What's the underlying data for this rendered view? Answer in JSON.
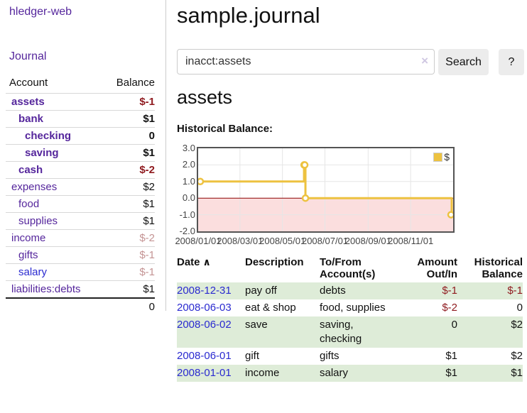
{
  "colors": {
    "link_purple": "#55269c",
    "link_blue": "#2a2ad0",
    "negative_red": "#8f1a1f",
    "negative_muted": "#c49494",
    "row_stripe_green": "#deecd8",
    "button_grey": "#ececec",
    "series_yellow": "#edc240"
  },
  "sidebar": {
    "app_title": "hledger-web",
    "nav_journal": "Journal",
    "table": {
      "col_account": "Account",
      "col_balance": "Balance",
      "total": "0"
    },
    "accounts": [
      {
        "label": "assets",
        "indent": 1,
        "bold": true,
        "color": "purple",
        "balance": "$-1",
        "balance_style": "neg"
      },
      {
        "label": "bank",
        "indent": 2,
        "bold": true,
        "color": "purple",
        "balance": "$1",
        "balance_style": "pos"
      },
      {
        "label": "checking",
        "indent": 3,
        "bold": true,
        "color": "purple",
        "balance": "0",
        "balance_style": "pos"
      },
      {
        "label": "saving",
        "indent": 3,
        "bold": true,
        "color": "purple",
        "balance": "$1",
        "balance_style": "pos"
      },
      {
        "label": "cash",
        "indent": 2,
        "bold": true,
        "color": "purple",
        "balance": "$-2",
        "balance_style": "neg"
      },
      {
        "label": "expenses",
        "indent": 1,
        "bold": false,
        "color": "purple",
        "balance": "$2",
        "balance_style": "pos"
      },
      {
        "label": "food",
        "indent": 2,
        "bold": false,
        "color": "purple",
        "balance": "$1",
        "balance_style": "pos"
      },
      {
        "label": "supplies",
        "indent": 2,
        "bold": false,
        "color": "purple",
        "balance": "$1",
        "balance_style": "pos"
      },
      {
        "label": "income",
        "indent": 1,
        "bold": false,
        "color": "purple",
        "balance": "$-2",
        "balance_style": "neg-muted"
      },
      {
        "label": "gifts",
        "indent": 2,
        "bold": false,
        "color": "purple",
        "balance": "$-1",
        "balance_style": "neg-muted"
      },
      {
        "label": "salary",
        "indent": 2,
        "bold": false,
        "color": "blue",
        "balance": "$-1",
        "balance_style": "neg-muted"
      },
      {
        "label": "liabilities:debts",
        "indent": 1,
        "bold": false,
        "color": "purple",
        "balance": "$1",
        "balance_style": "pos"
      }
    ]
  },
  "main": {
    "page_title": "sample.journal",
    "search": {
      "value": "inacct:assets",
      "clear_icon": "×",
      "button": "Search",
      "help_button": "?"
    },
    "account_heading": "assets",
    "register": {
      "columns": [
        "Date",
        "Description",
        "To/From Account(s)",
        "Amount Out/In",
        "Historical Balance"
      ],
      "sort_icon": "∧",
      "rows": [
        {
          "date": "2008-12-31",
          "description": "pay off",
          "accounts": "debts",
          "amount": "$-1",
          "amount_style": "neg",
          "balance": "$-1",
          "balance_style": "neg"
        },
        {
          "date": "2008-06-03",
          "description": "eat & shop",
          "accounts": "food, supplies",
          "amount": "$-2",
          "amount_style": "neg",
          "balance": "0",
          "balance_style": "pos"
        },
        {
          "date": "2008-06-02",
          "description": "save",
          "accounts": "saving, checking",
          "amount": "0",
          "amount_style": "pos",
          "balance": "$2",
          "balance_style": "pos"
        },
        {
          "date": "2008-06-01",
          "description": "gift",
          "accounts": "gifts",
          "amount": "$1",
          "amount_style": "pos",
          "balance": "$2",
          "balance_style": "pos"
        },
        {
          "date": "2008-01-01",
          "description": "income",
          "accounts": "salary",
          "amount": "$1",
          "amount_style": "pos",
          "balance": "$1",
          "balance_style": "pos"
        }
      ]
    }
  },
  "chart_data": {
    "type": "line",
    "step": true,
    "title": "Historical Balance:",
    "series_label": "$",
    "series_color": "#edc240",
    "x": [
      "2008-01-01",
      "2008-06-01",
      "2008-06-02",
      "2008-06-03",
      "2008-12-31"
    ],
    "y": [
      1,
      2,
      2,
      0,
      -1
    ],
    "xlim": [
      "2008-01-01",
      "2009-01-01"
    ],
    "ylim": [
      -2,
      3
    ],
    "yticks": [
      3,
      2,
      1,
      0,
      -1,
      -2
    ],
    "xticks": [
      {
        "date": "2008-01-01",
        "label": "2008/01/01"
      },
      {
        "date": "2008-03-01",
        "label": "2008/03/01"
      },
      {
        "date": "2008-05-01",
        "label": "2008/05/01"
      },
      {
        "date": "2008-07-01",
        "label": "2008/07/01"
      },
      {
        "date": "2008-09-01",
        "label": "2008/09/01"
      },
      {
        "date": "2008-11-01",
        "label": "2008/11/01"
      }
    ],
    "legend_position": "top-right",
    "grid": true,
    "grid_color": "#e6e6e6",
    "negative_fill": "#fbdede",
    "zero_line_color": "#8b0000"
  }
}
